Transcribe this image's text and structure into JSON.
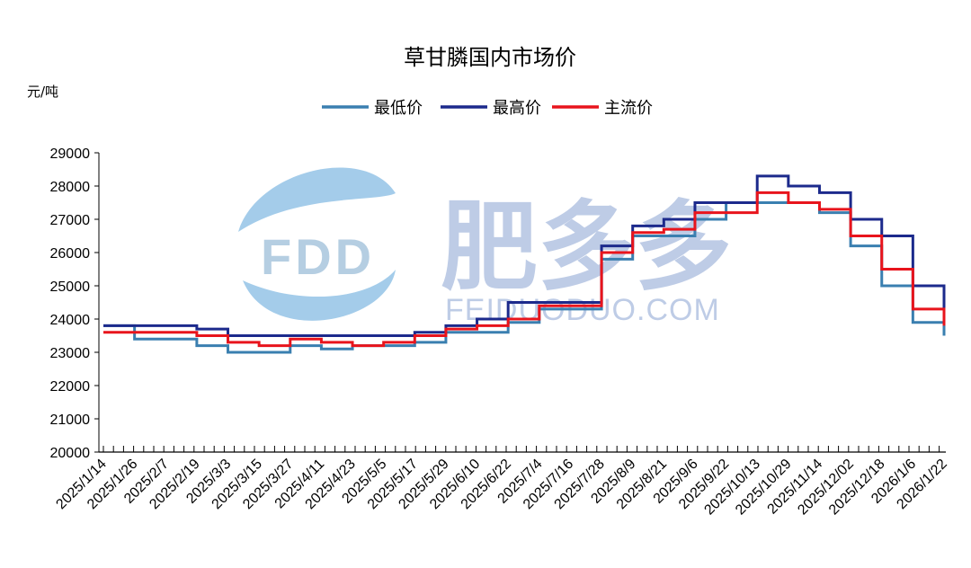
{
  "chart_data": {
    "type": "line",
    "title": "草甘膦国内市场价",
    "ylabel": "元/吨",
    "xlabel": "",
    "ylim": [
      20000,
      29000
    ],
    "yticks": [
      "20000",
      "21000",
      "22000",
      "23000",
      "24000",
      "25000",
      "26000",
      "27000",
      "28000",
      "29000"
    ],
    "grid": false,
    "legend_position": "top",
    "x": [
      "2025/1/14",
      "2025/1/26",
      "2025/2/7",
      "2025/2/19",
      "2025/3/3",
      "2025/3/15",
      "2025/3/27",
      "2025/4/11",
      "2025/4/23",
      "2025/5/5",
      "2025/5/17",
      "2025/5/29",
      "2025/6/10",
      "2025/6/22",
      "2025/7/4",
      "2025/7/16",
      "2025/7/28",
      "2025/8/9",
      "2025/8/21",
      "2025/9/6",
      "2025/9/22",
      "2025/10/13",
      "2025/10/29",
      "2025/11/14",
      "2025/12/02",
      "2025/12/18",
      "2026/1/6",
      "2026/1/22"
    ],
    "series": [
      {
        "name": "最低价",
        "color": "#3a7fb0",
        "values": [
          23800,
          23400,
          23400,
          23200,
          23000,
          23000,
          23200,
          23100,
          23200,
          23200,
          23300,
          23600,
          23600,
          23900,
          24300,
          24300,
          25800,
          26500,
          26500,
          27000,
          27500,
          27500,
          27500,
          27200,
          26200,
          25000,
          23900,
          23500
        ]
      },
      {
        "name": "最高价",
        "color": "#1c2a8c",
        "values": [
          23800,
          23800,
          23800,
          23700,
          23500,
          23500,
          23500,
          23500,
          23500,
          23500,
          23600,
          23800,
          24000,
          24500,
          24500,
          24500,
          26200,
          26800,
          27000,
          27500,
          27500,
          28300,
          28000,
          27800,
          27000,
          26500,
          25000,
          24000
        ]
      },
      {
        "name": "主流价",
        "color": "#e8141c",
        "values": [
          23600,
          23600,
          23600,
          23500,
          23300,
          23200,
          23400,
          23300,
          23200,
          23300,
          23500,
          23700,
          23800,
          24000,
          24400,
          24400,
          26000,
          26600,
          26700,
          27200,
          27200,
          27800,
          27500,
          27300,
          26500,
          25500,
          24300,
          23800
        ]
      }
    ]
  },
  "watermark": {
    "logo_text": "FDD",
    "brand_text": "肥多多",
    "domain_text": "FEIDUODUO.COM"
  }
}
